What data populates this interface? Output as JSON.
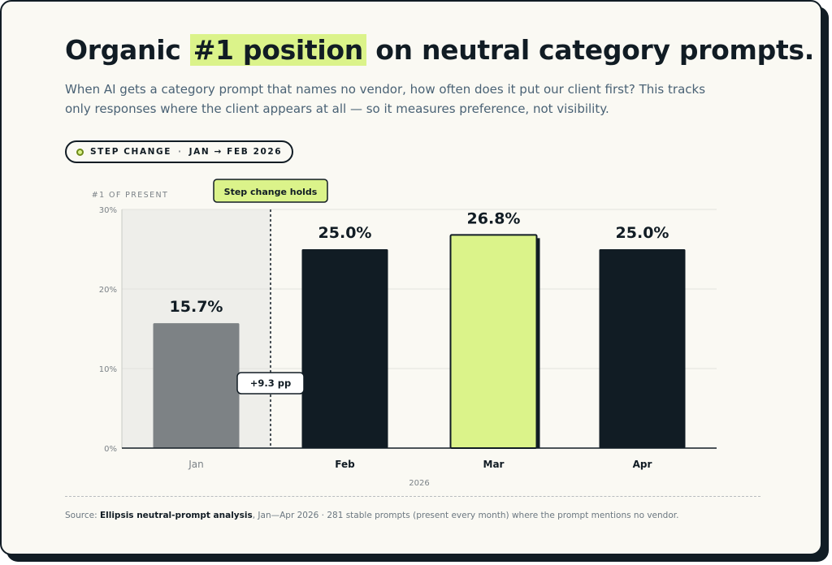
{
  "header": {
    "title_before": "Organic ",
    "title_highlight": "#1 position",
    "title_after": " on neutral category prompts.",
    "subtitle": "When AI gets a category prompt that names no vendor, how often does it put our client first? This tracks only responses where the client appears at all — so it measures preference, not visibility."
  },
  "badge": {
    "label": "STEP CHANGE",
    "separator": "·",
    "range": "JAN → FEB 2026"
  },
  "chart_data": {
    "type": "bar",
    "ylabel": "#1 OF PRESENT",
    "xlabel": "2026",
    "categories": [
      "Jan",
      "Feb",
      "Mar",
      "Apr"
    ],
    "values": [
      15.7,
      25.0,
      26.8,
      25.0
    ],
    "value_labels": [
      "15.7%",
      "25.0%",
      "26.8%",
      "25.0%"
    ],
    "ylim": [
      0,
      30
    ],
    "yticks": [
      0,
      10,
      20,
      30
    ],
    "ytick_labels": [
      "0%",
      "10%",
      "20%",
      "30%"
    ],
    "grid": true,
    "bar_colors": [
      "#7d8285",
      "#111c24",
      "#dbf38a",
      "#111c24"
    ],
    "baseline_shading_category": "Jan",
    "annotations": {
      "step_label": "Step change holds",
      "delta_label": "+9.3 pp"
    }
  },
  "footer": {
    "source_prefix": "Source: ",
    "source_org": "Ellipsis neutral-prompt analysis",
    "source_rest": ", Jan—Apr 2026 · 281 stable prompts (present every month) where the prompt mentions no vendor."
  },
  "colors": {
    "ink": "#111c24",
    "accent": "#dbf38a",
    "muted_bar": "#7d8285",
    "text_muted": "#4a6275"
  }
}
